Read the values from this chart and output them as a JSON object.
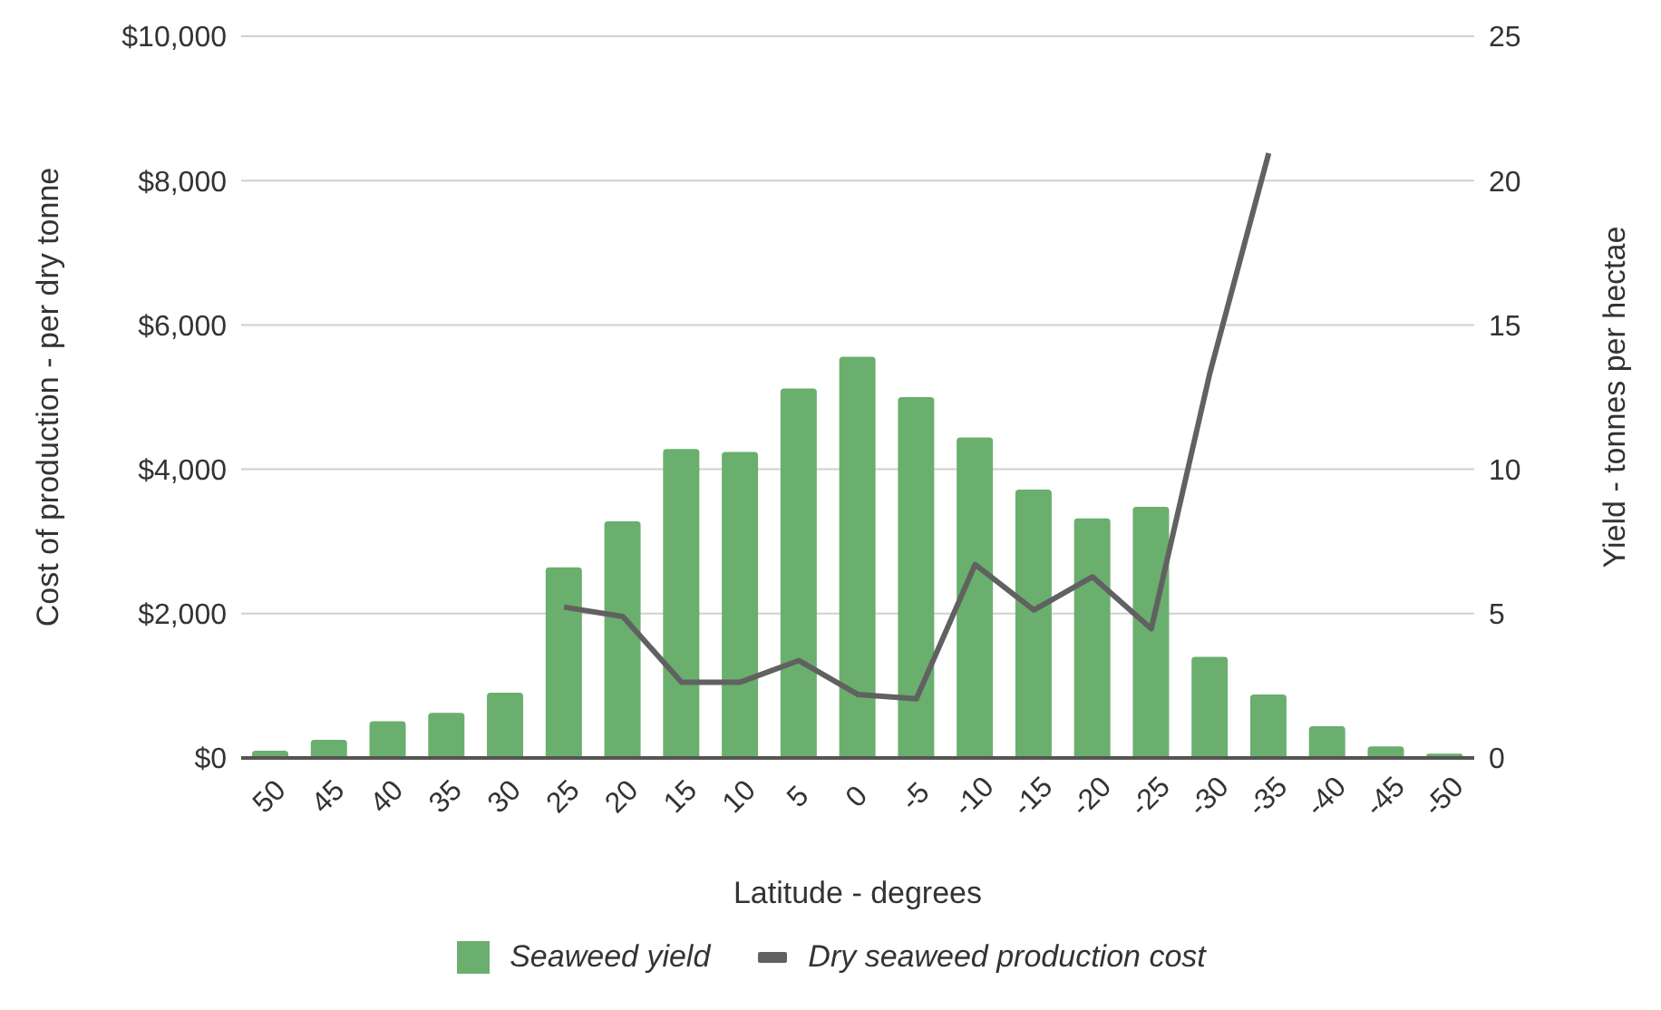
{
  "chart_data": {
    "type": "bar",
    "xlabel": "Latitude - degrees",
    "ylabel": "Cost of production - per dry tonne",
    "y2label": "Yield - tonnes per hectae",
    "categories": [
      "50",
      "45",
      "40",
      "35",
      "30",
      "25",
      "20",
      "15",
      "10",
      "5",
      "0",
      "-5",
      "-10",
      "-15",
      "-20",
      "-25",
      "-30",
      "-35",
      "-40",
      "-45",
      "-50"
    ],
    "series": [
      {
        "name": "Seaweed yield",
        "axis": "y2",
        "color": "#6aaf6e",
        "values": [
          0.25,
          0.63,
          1.27,
          1.56,
          2.26,
          6.6,
          8.2,
          10.7,
          10.6,
          12.8,
          13.9,
          12.5,
          11.1,
          9.3,
          8.3,
          8.7,
          3.5,
          2.2,
          1.1,
          0.4,
          0.15
        ]
      },
      {
        "name": "Dry seaweed production cost",
        "type": "line",
        "axis": "y",
        "color": "#616161",
        "values": [
          null,
          null,
          null,
          null,
          null,
          2090,
          1960,
          1050,
          1050,
          1350,
          880,
          820,
          2680,
          2050,
          2510,
          1790,
          5340,
          8380,
          null,
          null,
          null
        ]
      }
    ],
    "ylim": [
      0,
      10000
    ],
    "yticks": [
      {
        "value": 0,
        "label": "$0"
      },
      {
        "value": 2000,
        "label": "$2,000"
      },
      {
        "value": 4000,
        "label": "$4,000"
      },
      {
        "value": 6000,
        "label": "$6,000"
      },
      {
        "value": 8000,
        "label": "$8,000"
      },
      {
        "value": 10000,
        "label": "$10,000"
      }
    ],
    "y2lim": [
      0,
      25
    ],
    "y2ticks": [
      0,
      5,
      10,
      15,
      20,
      25
    ],
    "grid": "y",
    "legend": "bottom",
    "marker": "none"
  }
}
